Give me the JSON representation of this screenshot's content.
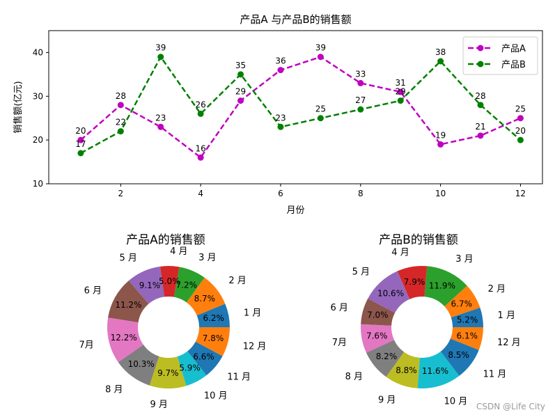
{
  "chart_data": [
    {
      "type": "line",
      "title": "产品A 与产品B的销售额",
      "xlabel": "月份",
      "ylabel": "销售额(亿元)",
      "xlim": [
        0.2,
        12.55
      ],
      "ylim": [
        10,
        45
      ],
      "xticks": [
        2,
        4,
        6,
        8,
        10,
        12
      ],
      "yticks": [
        10,
        20,
        30,
        40
      ],
      "legend": "top-right",
      "x": [
        1,
        2,
        3,
        4,
        5,
        6,
        7,
        8,
        9,
        10,
        11,
        12
      ],
      "series": [
        {
          "name": "产品A",
          "color": "#bf00bf",
          "values": [
            20,
            28,
            23,
            16,
            29,
            36,
            39,
            33,
            31,
            19,
            21,
            25
          ]
        },
        {
          "name": "产品B",
          "color": "#008000",
          "values": [
            17,
            22,
            39,
            26,
            35,
            23,
            25,
            27,
            29,
            38,
            28,
            20
          ]
        }
      ]
    },
    {
      "type": "pie",
      "title": "产品A的销售额",
      "labels": [
        "1 月",
        "2 月",
        "3 月",
        "4 月",
        "5 月",
        "6 月",
        "7月",
        "8 月",
        "9 月",
        "10 月",
        "11 月",
        "12 月"
      ],
      "percentages": [
        "6.2%",
        "8.7%",
        "7.2%",
        "5.0%",
        "9.1%",
        "11.2%",
        "12.2%",
        "10.3%",
        "9.7%",
        "5.9%",
        "6.6%",
        "7.8%"
      ],
      "values": [
        20,
        28,
        23,
        16,
        29,
        36,
        39,
        33,
        31,
        19,
        21,
        25
      ],
      "colors": [
        "#1f77b4",
        "#ff7f0e",
        "#2ca02c",
        "#d62728",
        "#9467bd",
        "#8c564b",
        "#e377c2",
        "#7f7f7f",
        "#bcbd22",
        "#17becf",
        "#1f77b4",
        "#ff7f0e"
      ]
    },
    {
      "type": "pie",
      "title": "产品B的销售额",
      "labels": [
        "1 月",
        "2 月",
        "3 月",
        "4 月",
        "5 月",
        "6 月",
        "7月",
        "8 月",
        "9 月",
        "10 月",
        "11 月",
        "12 月"
      ],
      "percentages": [
        "5.2%",
        "6.7%",
        "11.9%",
        "7.9%",
        "10.6%",
        "7.0%",
        "7.6%",
        "8.2%",
        "8.8%",
        "11.6%",
        "8.5%",
        "6.1%"
      ],
      "values": [
        17,
        22,
        39,
        26,
        35,
        23,
        25,
        27,
        29,
        38,
        28,
        20
      ],
      "colors": [
        "#1f77b4",
        "#ff7f0e",
        "#2ca02c",
        "#d62728",
        "#9467bd",
        "#8c564b",
        "#e377c2",
        "#7f7f7f",
        "#bcbd22",
        "#17becf",
        "#1f77b4",
        "#ff7f0e"
      ]
    }
  ],
  "watermark": "CSDN @Life City"
}
